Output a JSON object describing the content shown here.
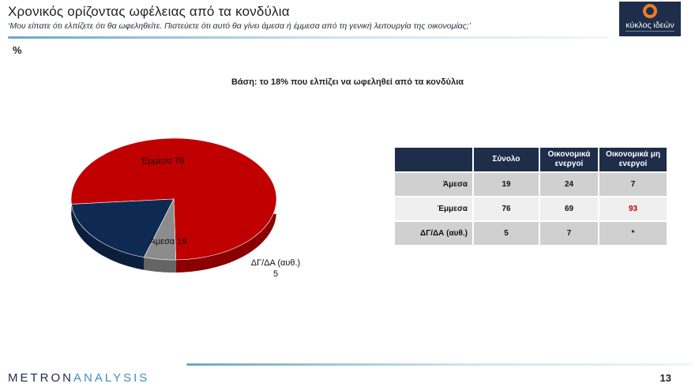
{
  "header": {
    "title": "Χρονικός ορίζοντας ωφέλειας από τα κονδύλια",
    "subtitle": "‘Μου είπατε ότι ελπίζετε ότι θα ωφεληθείτε. Πιστεύετε ότι αυτό θα γίνει άμεσα ή έμμεσα από τη γενική λειτουργία της οικονομίας;’",
    "unit": "%"
  },
  "logo": {
    "text": "κύκλος ιδεών",
    "color": "#1e2d4a",
    "accent": "#f07c26"
  },
  "base_text": "Βάση: το 18% που ελπίζει να ωφεληθεί από τα κονδύλια",
  "chart_data": {
    "type": "pie",
    "title": "",
    "slices": [
      {
        "label": "Έμμεσα",
        "value": 76,
        "color": "#c00000"
      },
      {
        "label": "Άμεσα",
        "value": 19,
        "color": "#0f2a52"
      },
      {
        "label": "ΔΓ/ΔΑ (αυθ.)",
        "value": 5,
        "color": "#8c8c8c"
      }
    ],
    "labels": {
      "indirect": "Έμμεσα 76",
      "direct": "Άμεσα 19",
      "dk_line1": "ΔΓ/ΔΑ (αυθ.)",
      "dk_line2": "5"
    }
  },
  "table": {
    "columns": [
      "Σύνολο",
      "Οικονομικά ενεργοί",
      "Οικονομικά μη ενεργοί"
    ],
    "rows": [
      {
        "label": "Άμεσα",
        "values": [
          "19",
          "24",
          "7"
        ]
      },
      {
        "label": "Έμμεσα",
        "values": [
          "76",
          "69",
          "93"
        ]
      },
      {
        "label": "ΔΓ/ΔΑ (αυθ.)",
        "values": [
          "5",
          "7",
          "*"
        ]
      }
    ],
    "highlight_color": "#c00000"
  },
  "footer": {
    "brand_part1": "METRON",
    "brand_part2": "ANALYSIS",
    "page_number": "13"
  }
}
